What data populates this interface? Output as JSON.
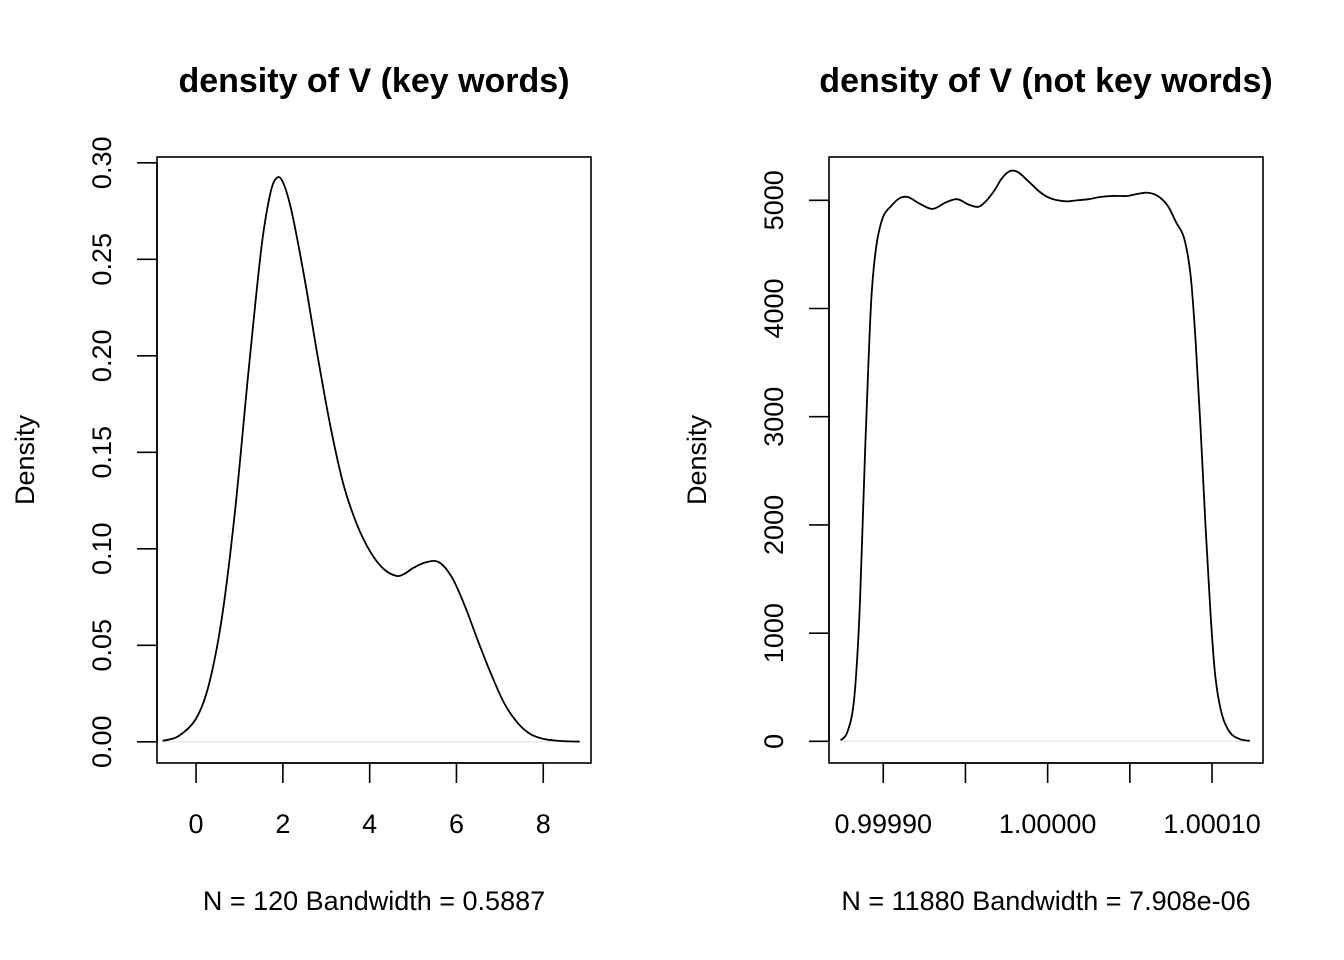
{
  "chart_data": [
    {
      "type": "line",
      "title": "density of V (key words)",
      "ylabel": "Density",
      "xlabel": "N = 120   Bandwidth = 0.5887",
      "xlim": [
        -0.9,
        9.1
      ],
      "ylim": [
        -0.011,
        0.303
      ],
      "xticks": [
        0,
        2,
        4,
        6,
        8
      ],
      "xtick_labels": [
        "0",
        "2",
        "4",
        "6",
        "8"
      ],
      "yticks": [
        0,
        0.05,
        0.1,
        0.15,
        0.2,
        0.25,
        0.3
      ],
      "ytick_labels": [
        "0.00",
        "0.05",
        "0.10",
        "0.15",
        "0.20",
        "0.25",
        "0.30"
      ],
      "grid": false,
      "series": [
        {
          "x": [
            -0.77,
            -0.4,
            0.0,
            0.3,
            0.6,
            0.9,
            1.2,
            1.5,
            1.7,
            1.85,
            2.0,
            2.2,
            2.5,
            2.8,
            3.1,
            3.4,
            3.7,
            4.0,
            4.3,
            4.6,
            4.8,
            5.0,
            5.3,
            5.6,
            5.9,
            6.2,
            6.5,
            6.8,
            7.1,
            7.4,
            7.7,
            8.0,
            8.3,
            8.6,
            8.84
          ],
          "y": [
            0.0005,
            0.003,
            0.012,
            0.03,
            0.065,
            0.12,
            0.19,
            0.255,
            0.283,
            0.292,
            0.29,
            0.275,
            0.24,
            0.2,
            0.163,
            0.133,
            0.113,
            0.099,
            0.09,
            0.086,
            0.087,
            0.09,
            0.093,
            0.093,
            0.085,
            0.07,
            0.052,
            0.035,
            0.02,
            0.01,
            0.004,
            0.0015,
            0.0006,
            0.0002,
            0.0001
          ]
        }
      ]
    },
    {
      "type": "line",
      "title": "density of V (not key words)",
      "ylabel": "Density",
      "xlabel": "N = 11880   Bandwidth = 7.908e-06",
      "xlim": [
        0.999867,
        1.000131
      ],
      "ylim": [
        -200,
        5400
      ],
      "xticks": [
        0.9999,
        0.99995,
        1.0,
        1.00005,
        1.0001
      ],
      "xtick_labels": [
        "0.99990",
        "",
        "1.00000",
        "",
        "1.00010"
      ],
      "yticks": [
        0,
        1000,
        2000,
        3000,
        4000,
        5000
      ],
      "ytick_labels": [
        "0",
        "1000",
        "2000",
        "3000",
        "4000",
        "5000"
      ],
      "grid": false,
      "series": [
        {
          "x": [
            0.999874,
            0.999878,
            0.999882,
            0.999885,
            0.999887,
            0.999889,
            0.999891,
            0.999893,
            0.999896,
            0.9999,
            0.999905,
            0.99991,
            0.999915,
            0.999922,
            0.99993,
            0.999938,
            0.999945,
            0.999952,
            0.999958,
            0.999963,
            0.999968,
            0.999972,
            0.999977,
            0.999982,
            0.999988,
            0.999995,
            1.0,
            1.000006,
            1.000012,
            1.000018,
            1.000025,
            1.000032,
            1.00004,
            1.000048,
            1.000055,
            1.000061,
            1.000067,
            1.000073,
            1.000078,
            1.000083,
            1.000087,
            1.00009,
            1.000093,
            1.000096,
            1.000099,
            1.000102,
            1.000106,
            1.000111,
            1.000117,
            1.000123
          ],
          "y": [
            10,
            80,
            350,
            1000,
            1800,
            2700,
            3500,
            4150,
            4600,
            4850,
            4950,
            5020,
            5030,
            4970,
            4920,
            4980,
            5010,
            4960,
            4940,
            5000,
            5100,
            5200,
            5270,
            5260,
            5180,
            5080,
            5030,
            5000,
            4990,
            5000,
            5010,
            5030,
            5040,
            5040,
            5060,
            5070,
            5040,
            4950,
            4800,
            4650,
            4300,
            3700,
            2900,
            2000,
            1200,
            600,
            250,
            80,
            20,
            5
          ]
        }
      ]
    }
  ]
}
